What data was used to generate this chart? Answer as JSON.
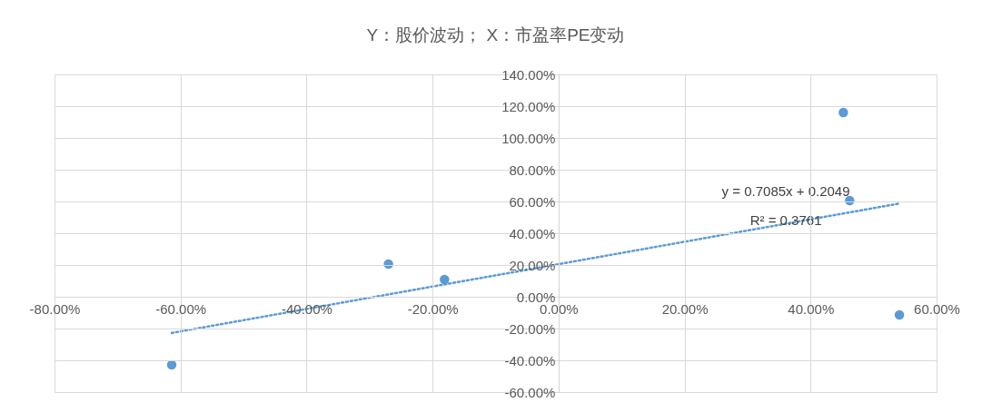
{
  "chart_data": {
    "type": "scatter",
    "title": "Y：股价波动； X：市盈率PE变动",
    "series": [
      {
        "color": "#5b9bd5",
        "marker": "circle",
        "x": [
          -61.4,
          -27.0,
          -18.1,
          45.2,
          46.2,
          54.1
        ],
        "values": [
          -42.9,
          20.6,
          10.9,
          116,
          60.6,
          -11.4
        ]
      },
      {
        "type": "line",
        "color": "#5b9bd5",
        "marker": "none",
        "line_style": "dotted",
        "x": [
          -61.4,
          54.1
        ],
        "values": [
          -22.8,
          58.7
        ]
      }
    ],
    "xlim": [
      -80,
      60
    ],
    "xticks": [
      {
        "value": -80,
        "label": "-80.00%"
      },
      {
        "value": -60,
        "label": "-60.00%"
      },
      {
        "value": -40,
        "label": "-40.00%"
      },
      {
        "value": -20,
        "label": "-20.00%"
      },
      {
        "value": 0,
        "label": "0.00%"
      },
      {
        "value": 20,
        "label": "20.00%"
      },
      {
        "value": 40,
        "label": "40.00%"
      },
      {
        "value": 60,
        "label": "60.00%"
      }
    ],
    "ylim": [
      -60,
      140
    ],
    "yticks": [
      {
        "value": -60,
        "label": "-60.00%"
      },
      {
        "value": -40,
        "label": "-40.00%"
      },
      {
        "value": -20,
        "label": "-20.00%"
      },
      {
        "value": 0,
        "label": "0.00%"
      },
      {
        "value": 20,
        "label": "20.00%"
      },
      {
        "value": 40,
        "label": "40.00%"
      },
      {
        "value": 60,
        "label": "60.00%"
      },
      {
        "value": 80,
        "label": "80.00%"
      },
      {
        "value": 100,
        "label": "100.00%"
      },
      {
        "value": 120,
        "label": "120.00%"
      },
      {
        "value": 140,
        "label": "140.00%"
      }
    ],
    "grid": true,
    "annotations": [
      "y = 0.7085x + 0.2049",
      "R² = 0.3761"
    ]
  }
}
